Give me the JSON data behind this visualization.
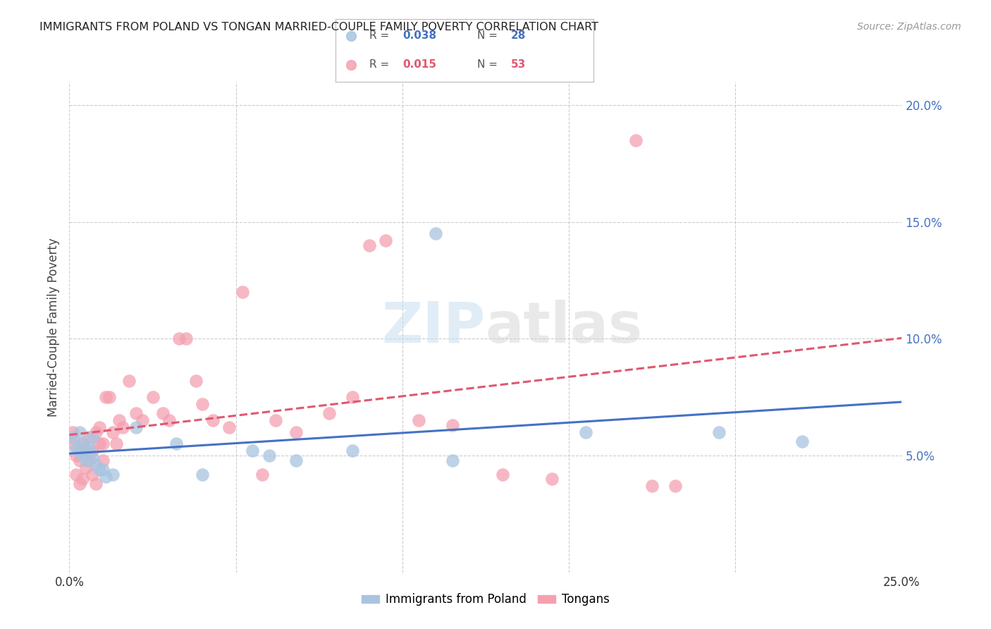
{
  "title": "IMMIGRANTS FROM POLAND VS TONGAN MARRIED-COUPLE FAMILY POVERTY CORRELATION CHART",
  "source": "Source: ZipAtlas.com",
  "ylabel": "Married-Couple Family Poverty",
  "xmin": 0.0,
  "xmax": 0.25,
  "ymin": 0.0,
  "ymax": 0.21,
  "x_tick_positions": [
    0.0,
    0.05,
    0.1,
    0.15,
    0.2,
    0.25
  ],
  "x_tick_labels": [
    "0.0%",
    "",
    "",
    "",
    "",
    "25.0%"
  ],
  "y_ticks_right": [
    0.05,
    0.1,
    0.15,
    0.2
  ],
  "y_tick_labels_right": [
    "5.0%",
    "10.0%",
    "15.0%",
    "20.0%"
  ],
  "poland_R": 0.038,
  "poland_N": 28,
  "tongan_R": 0.015,
  "tongan_N": 53,
  "poland_color": "#a8c4e0",
  "tongan_color": "#f4a0b0",
  "poland_line_color": "#4472c4",
  "tongan_line_color": "#e05870",
  "poland_x": [
    0.001,
    0.002,
    0.003,
    0.003,
    0.004,
    0.004,
    0.005,
    0.005,
    0.006,
    0.007,
    0.007,
    0.008,
    0.009,
    0.01,
    0.011,
    0.013,
    0.02,
    0.032,
    0.04,
    0.055,
    0.06,
    0.068,
    0.085,
    0.11,
    0.115,
    0.155,
    0.195,
    0.22
  ],
  "poland_y": [
    0.058,
    0.053,
    0.052,
    0.06,
    0.05,
    0.055,
    0.048,
    0.052,
    0.053,
    0.058,
    0.049,
    0.046,
    0.044,
    0.044,
    0.041,
    0.042,
    0.062,
    0.055,
    0.042,
    0.052,
    0.05,
    0.048,
    0.052,
    0.145,
    0.048,
    0.06,
    0.06,
    0.056
  ],
  "tongan_x": [
    0.001,
    0.001,
    0.002,
    0.002,
    0.003,
    0.003,
    0.004,
    0.004,
    0.005,
    0.005,
    0.006,
    0.006,
    0.007,
    0.007,
    0.008,
    0.008,
    0.009,
    0.009,
    0.01,
    0.01,
    0.011,
    0.012,
    0.013,
    0.014,
    0.015,
    0.016,
    0.018,
    0.02,
    0.022,
    0.025,
    0.028,
    0.03,
    0.033,
    0.035,
    0.038,
    0.04,
    0.043,
    0.048,
    0.052,
    0.058,
    0.062,
    0.068,
    0.078,
    0.085,
    0.09,
    0.095,
    0.105,
    0.115,
    0.13,
    0.145,
    0.17,
    0.175,
    0.182
  ],
  "tongan_y": [
    0.06,
    0.055,
    0.05,
    0.042,
    0.048,
    0.038,
    0.055,
    0.04,
    0.052,
    0.045,
    0.058,
    0.048,
    0.052,
    0.042,
    0.06,
    0.038,
    0.062,
    0.055,
    0.055,
    0.048,
    0.075,
    0.075,
    0.06,
    0.055,
    0.065,
    0.062,
    0.082,
    0.068,
    0.065,
    0.075,
    0.068,
    0.065,
    0.1,
    0.1,
    0.082,
    0.072,
    0.065,
    0.062,
    0.12,
    0.042,
    0.065,
    0.06,
    0.068,
    0.075,
    0.14,
    0.142,
    0.065,
    0.063,
    0.042,
    0.04,
    0.185,
    0.037,
    0.037
  ]
}
